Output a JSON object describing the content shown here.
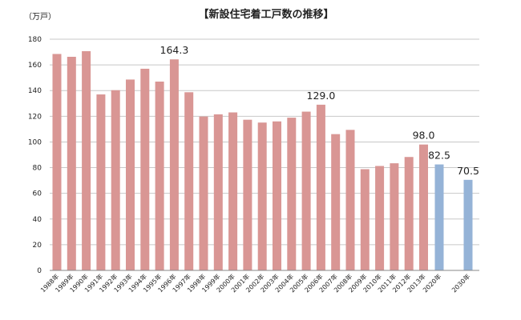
{
  "chart_data": {
    "type": "bar",
    "title": "【新設住宅着工戸数の推移】",
    "unit_label": "（万戸）",
    "ylim": [
      0,
      180
    ],
    "yticks": [
      0,
      20,
      40,
      60,
      80,
      100,
      120,
      140,
      160,
      180
    ],
    "grid": true,
    "legend": "none",
    "colors": {
      "actual": "#d99694",
      "forecast": "#95b3d7"
    },
    "categories": [
      "1988年",
      "1989年",
      "1990年",
      "1991年",
      "1992年",
      "1993年",
      "1994年",
      "1995年",
      "1996年",
      "1997年",
      "1998年",
      "1999年",
      "2000年",
      "2001年",
      "2002年",
      "2003年",
      "2004年",
      "2005年",
      "2006年",
      "2007年",
      "2008年",
      "2009年",
      "2010年",
      "2011年",
      "2012年",
      "2013年",
      "2020年",
      "2030年"
    ],
    "values": [
      168.5,
      166.3,
      170.7,
      137.0,
      140.3,
      148.6,
      157.0,
      147.0,
      164.3,
      138.7,
      119.8,
      121.5,
      123.0,
      117.3,
      115.1,
      116.0,
      118.9,
      123.6,
      129.0,
      106.1,
      109.4,
      78.8,
      81.3,
      83.4,
      88.3,
      98.0,
      82.5,
      70.5
    ],
    "series_type": [
      "actual",
      "actual",
      "actual",
      "actual",
      "actual",
      "actual",
      "actual",
      "actual",
      "actual",
      "actual",
      "actual",
      "actual",
      "actual",
      "actual",
      "actual",
      "actual",
      "actual",
      "actual",
      "actual",
      "actual",
      "actual",
      "actual",
      "actual",
      "actual",
      "actual",
      "actual",
      "forecast",
      "forecast"
    ],
    "data_labels": [
      {
        "index": 8,
        "text": "164.3"
      },
      {
        "index": 18,
        "text": "129.0"
      },
      {
        "index": 25,
        "text": "98.0"
      },
      {
        "index": 26,
        "text": "82.5"
      },
      {
        "index": 27,
        "text": "70.5"
      }
    ]
  }
}
